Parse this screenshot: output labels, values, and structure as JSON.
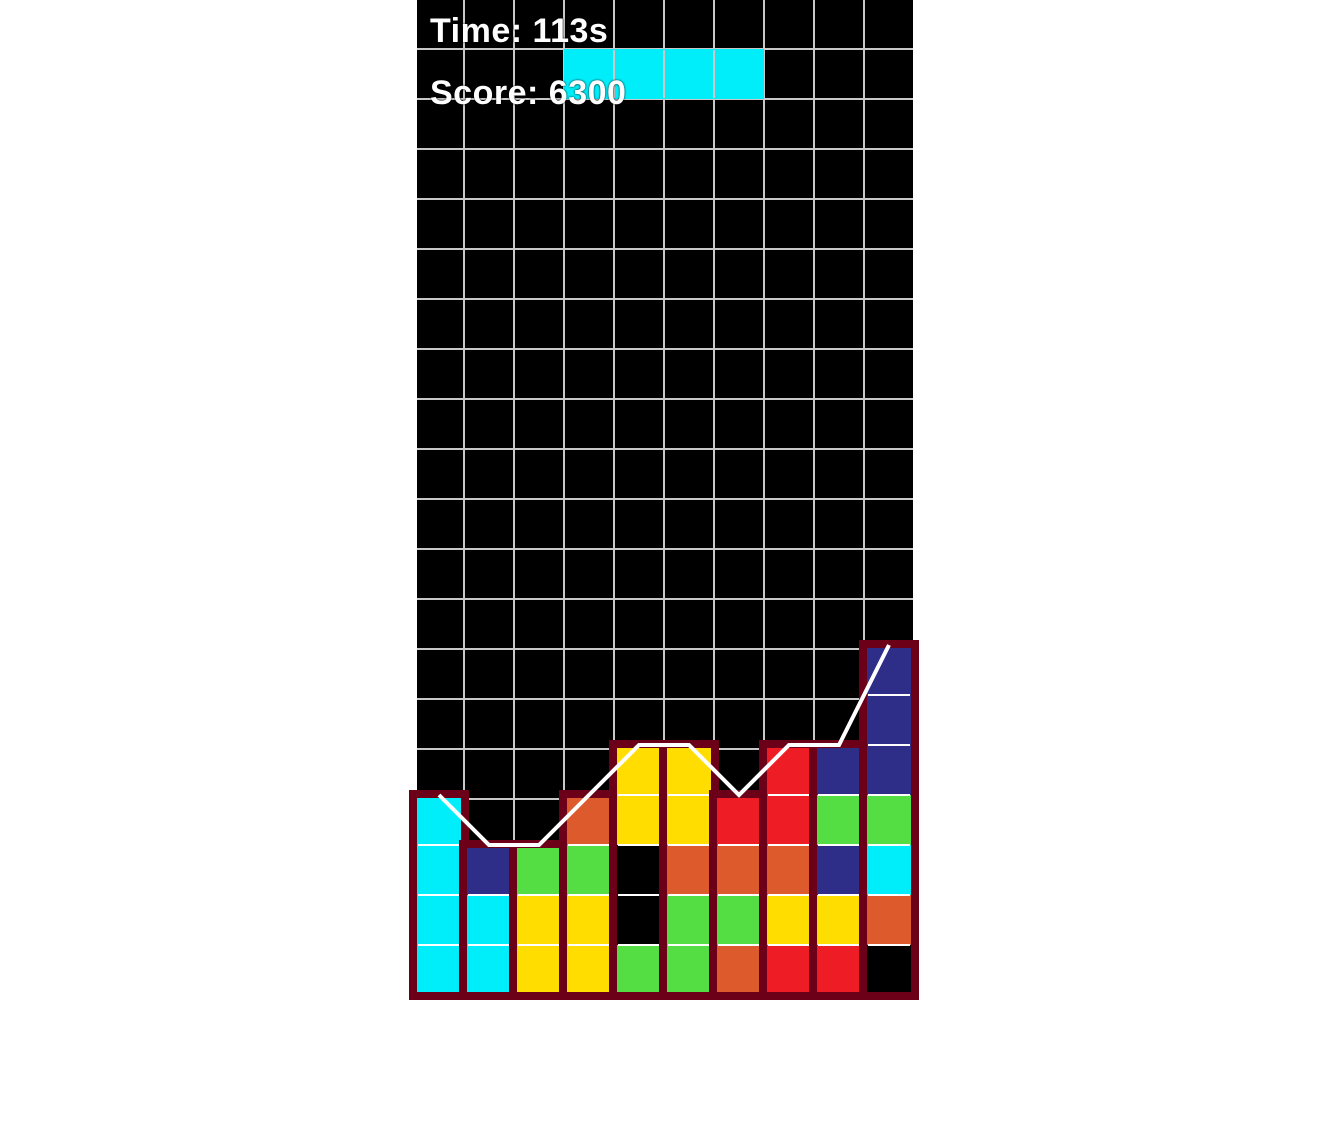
{
  "hud": {
    "time_label": "Time:",
    "time_value": "113s",
    "score_label": "Score:",
    "score_value": "6300"
  },
  "board": {
    "columns": 10,
    "rows": 20,
    "background": "#000000",
    "grid_color": "#c8c8c8",
    "outline_color": "#6b0018",
    "profile_line_color": "#ffffff"
  },
  "colors": {
    "C": "#00eefa",
    "B": "#2e2d88",
    "G": "#55dd44",
    "Y": "#ffdd00",
    "O": "#dd5a2c",
    "R": "#ee1c24",
    "K": "#000000"
  },
  "active_piece": {
    "name": "I-piece",
    "color": "C",
    "row": 1,
    "cols": [
      3,
      4,
      5,
      6
    ]
  },
  "stack": [
    {
      "column": 0,
      "cells": [
        "C",
        "C",
        "C",
        "C"
      ]
    },
    {
      "column": 1,
      "cells": [
        "C",
        "C",
        "B"
      ]
    },
    {
      "column": 2,
      "cells": [
        "Y",
        "Y",
        "G"
      ]
    },
    {
      "column": 3,
      "cells": [
        "Y",
        "Y",
        "G",
        "O"
      ]
    },
    {
      "column": 4,
      "cells": [
        "G",
        "K",
        "K",
        "Y",
        "Y"
      ]
    },
    {
      "column": 5,
      "cells": [
        "G",
        "G",
        "O",
        "Y",
        "Y"
      ]
    },
    {
      "column": 6,
      "cells": [
        "O",
        "G",
        "O",
        "R"
      ]
    },
    {
      "column": 7,
      "cells": [
        "R",
        "Y",
        "O",
        "R",
        "R"
      ]
    },
    {
      "column": 8,
      "cells": [
        "R",
        "Y",
        "B",
        "G",
        "B"
      ]
    },
    {
      "column": 9,
      "cells": [
        "K",
        "O",
        "C",
        "G",
        "B",
        "B",
        "B"
      ]
    }
  ]
}
